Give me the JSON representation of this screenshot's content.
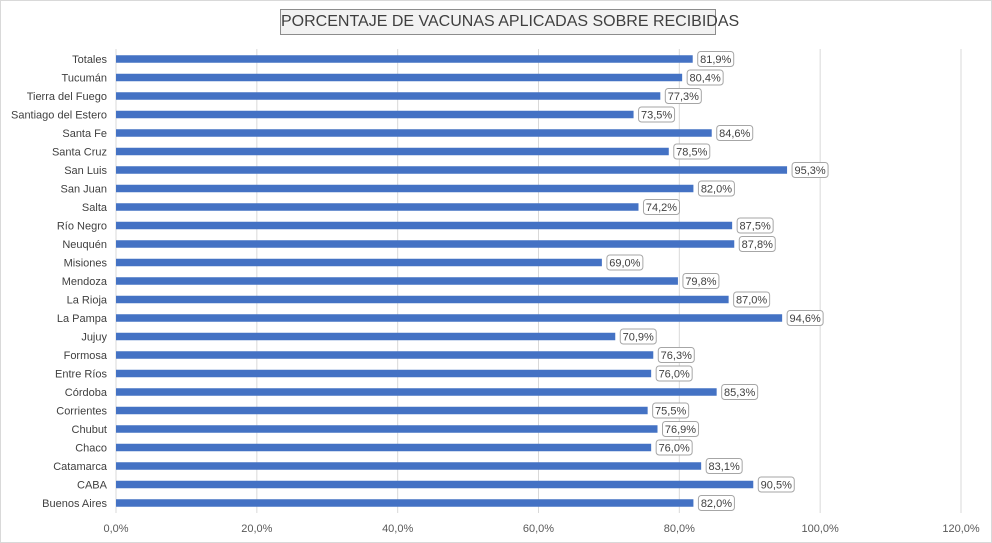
{
  "chart_data": {
    "type": "bar",
    "orientation": "horizontal",
    "title": "PORCENTAJE DE VACUNAS APLICADAS SOBRE RECIBIDAS",
    "categories": [
      "Totales",
      "Tucumán",
      "Tierra del Fuego",
      "Santiago del Estero",
      "Santa Fe",
      "Santa Cruz",
      "San Luis",
      "San Juan",
      "Salta",
      "Río Negro",
      "Neuquén",
      "Misiones",
      "Mendoza",
      "La Rioja",
      "La Pampa",
      "Jujuy",
      "Formosa",
      "Entre Ríos",
      "Córdoba",
      "Corrientes",
      "Chubut",
      "Chaco",
      "Catamarca",
      "CABA",
      "Buenos Aires"
    ],
    "values": [
      81.9,
      80.4,
      77.3,
      73.5,
      84.6,
      78.5,
      95.3,
      82.0,
      74.2,
      87.5,
      87.8,
      69.0,
      79.8,
      87.0,
      94.6,
      70.9,
      76.3,
      76.0,
      85.3,
      75.5,
      76.9,
      76.0,
      83.1,
      90.5,
      82.0
    ],
    "data_labels": [
      "81,9%",
      "80,4%",
      "77,3%",
      "73,5%",
      "84,6%",
      "78,5%",
      "95,3%",
      "82,0%",
      "74,2%",
      "87,5%",
      "87,8%",
      "69,0%",
      "79,8%",
      "87,0%",
      "94,6%",
      "70,9%",
      "76,3%",
      "76,0%",
      "85,3%",
      "75,5%",
      "76,9%",
      "76,0%",
      "83,1%",
      "90,5%",
      "82,0%"
    ],
    "xlim": [
      0,
      120
    ],
    "x_ticks": [
      0,
      20,
      40,
      60,
      80,
      100,
      120
    ],
    "x_tick_labels": [
      "0,0%",
      "20,0%",
      "40,0%",
      "60,0%",
      "80,0%",
      "100,0%",
      "120,0%"
    ],
    "xlabel": "",
    "ylabel": "",
    "grid": true,
    "legend": "none",
    "bar_color": "#4472c4",
    "grid_color": "#d9d9d9"
  }
}
